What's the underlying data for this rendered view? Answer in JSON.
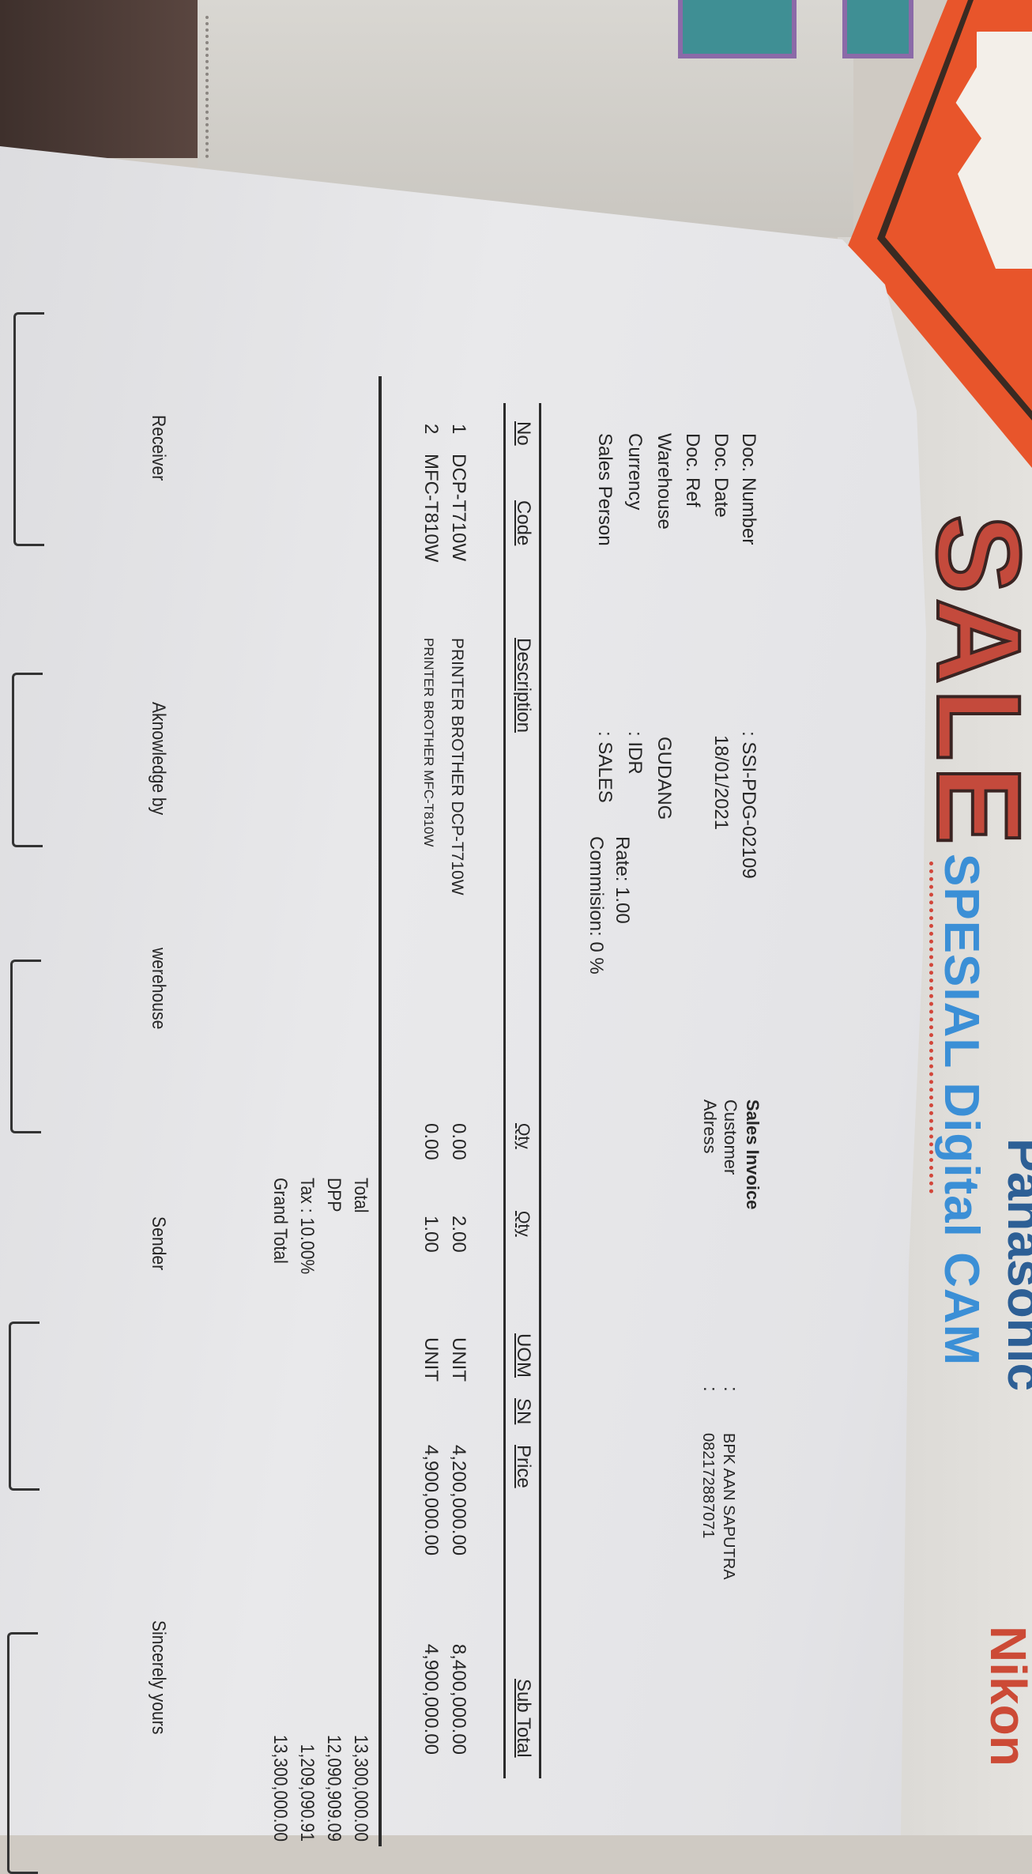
{
  "background": {
    "poster": {
      "headline": "SALE",
      "brand_1": "Panasonic",
      "brand_2": "Nikon",
      "tagline": "SPESIAL Digital CAM"
    },
    "colors": {
      "orange_card": "#e8552b",
      "poster_red": "#c44a3c",
      "poster_blue": "#3b8fd6",
      "paper": "#e6e6e8"
    }
  },
  "document": {
    "title": "Sales Invoice",
    "header": {
      "doc_number": {
        "label": "Doc. Number",
        "value": ": SSI-PDG-02109"
      },
      "doc_date": {
        "label": "Doc. Date",
        "value": "18/01/2021"
      },
      "doc_ref": {
        "label": "Doc. Ref",
        "value": ""
      },
      "warehouse": {
        "label": "Warehouse",
        "value": "GUDANG"
      },
      "currency": {
        "label": "Currency",
        "value": ": IDR",
        "rate": "Rate: 1.00"
      },
      "sales_person": {
        "label": "Sales Person",
        "value": ": SALES",
        "commission": "Commision: 0 %"
      },
      "customer": {
        "label": "Customer",
        "colon": ":",
        "value": "BPK AAN SAPUTRA"
      },
      "address": {
        "label": "Adress",
        "colon": ":",
        "value": "082172887071"
      }
    },
    "table": {
      "columns": [
        "No",
        "Code",
        "Description",
        "Qty",
        "Qty",
        "UOM",
        "SN",
        "Price",
        "Sub Total"
      ],
      "rows": [
        {
          "no": "1",
          "code": "DCP-T710W",
          "description": "PRINTER BROTHER DCP-T710W",
          "qty1": "0.00",
          "qty2": "2.00",
          "uom": "UNIT",
          "sn": "",
          "price": "4,200,000.00",
          "subtotal": "8,400,000.00"
        },
        {
          "no": "2",
          "code": "MFC-T810W",
          "description": "PRINTER BROTHER MFC-T810W",
          "qty1": "0.00",
          "qty2": "1.00",
          "uom": "UNIT",
          "sn": "",
          "price": "4,900,000.00",
          "subtotal": "4,900,000.00"
        }
      ]
    },
    "totals": [
      {
        "label": "Total",
        "value": "13,300,000.00"
      },
      {
        "label": "DPP",
        "value": "12,090,909.09"
      },
      {
        "label": "Tax : 10.00%",
        "value": "1,209,090.91"
      },
      {
        "label": "Grand Total",
        "value": "13,300,000.00"
      }
    ],
    "signatures": [
      "Receiver",
      "Aknowledge by",
      "werehouse",
      "Sender",
      "Sincerely yours"
    ]
  }
}
